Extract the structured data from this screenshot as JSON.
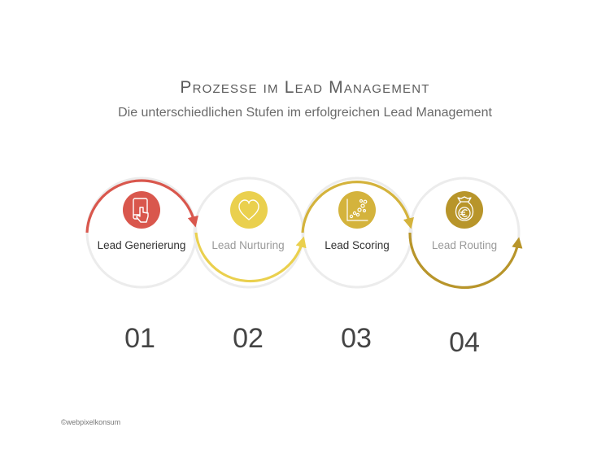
{
  "header": {
    "title": "Prozesse im Lead Management",
    "subtitle": "Die unterschiedlichen Stufen im erfolgreichen Lead Management"
  },
  "colors": {
    "ring_light": "#ececec",
    "step1": "#d9574d",
    "step2": "#ead04e",
    "step3": "#d4b33c",
    "step4": "#b8952a"
  },
  "steps": [
    {
      "label": "Lead Generierung",
      "number": "01",
      "icon": "tablet-touch-icon",
      "color": "#d9574d",
      "label_color": "#333333"
    },
    {
      "label": "Lead Nurturing",
      "number": "02",
      "icon": "heart-icon",
      "color": "#ead04e",
      "label_color": "#9a9a9a"
    },
    {
      "label": "Lead Scoring",
      "number": "03",
      "icon": "scatter-chart-icon",
      "color": "#d4b33c",
      "label_color": "#333333"
    },
    {
      "label": "Lead Routing",
      "number": "04",
      "icon": "euro-money-bag-icon",
      "color": "#b8952a",
      "label_color": "#9a9a9a"
    }
  ],
  "footer": {
    "copyright": "©webpixelkonsum"
  }
}
